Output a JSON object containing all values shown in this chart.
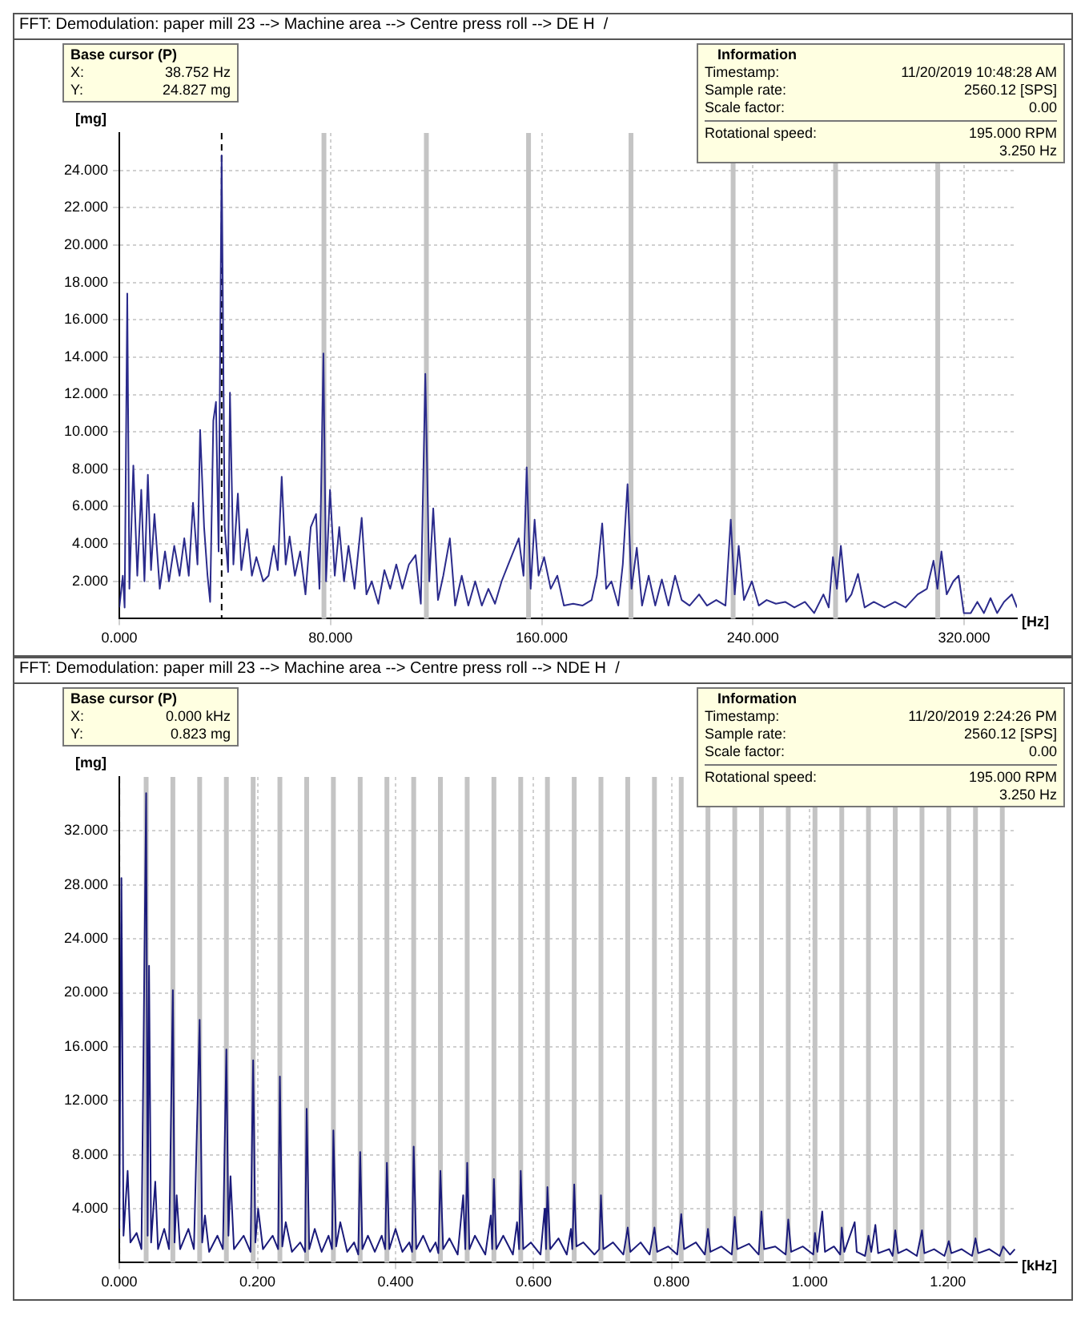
{
  "chart_data": [
    {
      "type": "line",
      "title": "FFT: Demodulation: paper mill 23 --> Machine area --> Centre press roll --> DE H  /",
      "xlabel": "[Hz]",
      "ylabel": "[mg]",
      "annotations": [
        "Base cursor (P)",
        "X:",
        "38.752 Hz",
        "Y:",
        "24.827 mg",
        "Information",
        "Timestamp:",
        "11/20/2019 10:48:28 AM",
        "Sample rate:",
        "2560.12 [SPS]",
        "Scale factor:",
        "0.00",
        "Rotational speed:",
        "195.000 RPM",
        "3.250 Hz"
      ],
      "color": "#2b2b8c",
      "marker": "none",
      "grid": true,
      "xlim": [
        0,
        340
      ],
      "ylim": [
        0,
        26
      ],
      "xticks": [
        {
          "value": 0,
          "label": "0.000"
        },
        {
          "value": 80,
          "label": "80.000"
        },
        {
          "value": 160,
          "label": "160.000"
        },
        {
          "value": 240,
          "label": "240.000"
        },
        {
          "value": 320,
          "label": "320.000"
        }
      ],
      "yticks": [
        {
          "value": 2,
          "label": "2.000"
        },
        {
          "value": 4,
          "label": "4.000"
        },
        {
          "value": 6,
          "label": "6.000"
        },
        {
          "value": 8,
          "label": "8.000"
        },
        {
          "value": 10,
          "label": "10.000"
        },
        {
          "value": 12,
          "label": "12.000"
        },
        {
          "value": 14,
          "label": "14.000"
        },
        {
          "value": 16,
          "label": "16.000"
        },
        {
          "value": 18,
          "label": "18.000"
        },
        {
          "value": 20,
          "label": "20.000"
        },
        {
          "value": 22,
          "label": "22.000"
        },
        {
          "value": 24,
          "label": "24.000"
        }
      ],
      "ref_lines": [
        {
          "axis": "x",
          "value": 38.752,
          "color": "#000000",
          "line_style": "dashed"
        },
        {
          "axis": "x",
          "value": 77.5,
          "color": "#c4c4c4"
        },
        {
          "axis": "x",
          "value": 116.3,
          "color": "#c4c4c4"
        },
        {
          "axis": "x",
          "value": 155,
          "color": "#c4c4c4"
        },
        {
          "axis": "x",
          "value": 193.8,
          "color": "#c4c4c4"
        },
        {
          "axis": "x",
          "value": 232.5,
          "color": "#c4c4c4"
        },
        {
          "axis": "x",
          "value": 271.3,
          "color": "#c4c4c4"
        },
        {
          "axis": "x",
          "value": 310,
          "color": "#c4c4c4"
        }
      ],
      "x": [
        0,
        1.3,
        2,
        3,
        3.8,
        5.3,
        6.8,
        8.3,
        9.5,
        10.8,
        12,
        13.3,
        15.3,
        17.3,
        18.8,
        20.8,
        22.8,
        24.6,
        26.3,
        27.9,
        29.6,
        30.6,
        32.1,
        33.4,
        34.4,
        35.6,
        36.6,
        37.6,
        38.752,
        39.9,
        41.2,
        41.9,
        43.2,
        44.9,
        46.2,
        48.4,
        50.2,
        51.9,
        54.5,
        56.5,
        58.5,
        60,
        61.5,
        63,
        64.5,
        66.5,
        68.5,
        70.5,
        72.5,
        74.5,
        75.8,
        77.3,
        78.3,
        79.8,
        81.6,
        83.3,
        85.1,
        86.8,
        89.1,
        91.8,
        93.6,
        95.6,
        98.1,
        100.4,
        102.6,
        104.9,
        107.2,
        109.7,
        112.2,
        114.2,
        115.9,
        117.4,
        118.9,
        120.7,
        122.7,
        125.2,
        127.2,
        129.7,
        132.2,
        134.8,
        137.3,
        139.8,
        142.3,
        144.8,
        147.3,
        149.3,
        151.3,
        153.1,
        154.3,
        155.8,
        157.3,
        158.8,
        160.9,
        163.4,
        165.9,
        168.4,
        171.9,
        175.4,
        178.9,
        180.9,
        182.9,
        184.4,
        186.4,
        189,
        190.7,
        192.5,
        194,
        196,
        198,
        200.5,
        203,
        205.5,
        208,
        210.5,
        213,
        216,
        219.6,
        222.6,
        226.1,
        229.6,
        231.6,
        233.1,
        234.6,
        236.6,
        239.6,
        242.2,
        245.2,
        248.7,
        252.2,
        255.7,
        259.7,
        263.2,
        266.7,
        268.7,
        270.3,
        271.8,
        273.3,
        275.3,
        277.3,
        279.8,
        282.3,
        285.8,
        289.8,
        293.8,
        297.8,
        302.4,
        305.9,
        308.4,
        309.9,
        311.4,
        313.4,
        315.9,
        317.9,
        319.9,
        322.5,
        325,
        327.5,
        330,
        332.5,
        335.1,
        338.1,
        340
      ],
      "values": [
        0.6,
        2.3,
        0.6,
        17.4,
        1.6,
        8.2,
        2.3,
        6.9,
        2,
        7.7,
        2.6,
        5.6,
        1.6,
        3.6,
        2,
        3.9,
        2.3,
        4.3,
        2.3,
        6.2,
        2.9,
        10.1,
        4.9,
        2.3,
        0.9,
        10.6,
        11.6,
        3.6,
        24.8,
        4.9,
        2.5,
        12.1,
        2.9,
        6.7,
        2.6,
        4.8,
        2.3,
        3.3,
        2,
        2.3,
        3.9,
        2.6,
        7.6,
        2.9,
        4.4,
        2.3,
        3.6,
        1.3,
        4.9,
        5.6,
        1.6,
        14.2,
        2,
        6.9,
        2.3,
        4.9,
        2,
        3.9,
        1.6,
        5.4,
        1.3,
        2,
        0.8,
        2.6,
        1.6,
        2.9,
        1.6,
        2.9,
        3.4,
        0.8,
        13.1,
        2,
        5.9,
        1,
        2.3,
        4.3,
        0.7,
        2.3,
        0.7,
        2,
        0.7,
        1.6,
        0.8,
        2,
        2.9,
        3.6,
        4.3,
        2.3,
        8.1,
        1.6,
        5.3,
        2.3,
        3.3,
        1.6,
        2.3,
        0.7,
        0.8,
        0.7,
        1,
        2.3,
        5.1,
        1.6,
        2,
        0.7,
        2.9,
        7.2,
        1.6,
        3.8,
        0.7,
        2.3,
        0.7,
        2.1,
        0.7,
        2.3,
        1,
        0.7,
        1.3,
        0.7,
        1,
        0.7,
        5.3,
        1.3,
        3.9,
        1,
        2,
        0.7,
        1,
        0.8,
        0.9,
        0.6,
        0.9,
        0.3,
        1.3,
        0.6,
        3.3,
        1.6,
        3.9,
        0.9,
        1.3,
        2.4,
        0.6,
        0.9,
        0.6,
        0.9,
        0.6,
        1.3,
        1.6,
        3.1,
        1.6,
        3.6,
        1.3,
        2,
        2.3,
        0.3,
        0.3,
        0.9,
        0.3,
        1.1,
        0.3,
        0.9,
        1.3,
        0.6
      ]
    },
    {
      "type": "line",
      "title": "FFT: Demodulation: paper mill 23 --> Machine area --> Centre press roll --> NDE H  /",
      "xlabel": "[kHz]",
      "ylabel": "[mg]",
      "annotations": [
        "Base cursor (P)",
        "X:",
        "0.000 kHz",
        "Y:",
        "0.823 mg",
        "Information",
        "Timestamp:",
        "11/20/2019 2:24:26 PM",
        "Sample rate:",
        "2560.12 [SPS]",
        "Scale factor:",
        "0.00",
        "Rotational speed:",
        "195.000 RPM",
        "3.250 Hz"
      ],
      "color": "#1a1a7a",
      "marker": "none",
      "grid": true,
      "xlim": [
        0,
        1.3
      ],
      "ylim": [
        0,
        36
      ],
      "xticks": [
        {
          "value": 0,
          "label": "0.000"
        },
        {
          "value": 0.2,
          "label": "0.200"
        },
        {
          "value": 0.4,
          "label": "0.400"
        },
        {
          "value": 0.6,
          "label": "0.600"
        },
        {
          "value": 0.8,
          "label": "0.800"
        },
        {
          "value": 1,
          "label": "1.000"
        },
        {
          "value": 1.2,
          "label": "1.200"
        }
      ],
      "yticks": [
        {
          "value": 4,
          "label": "4.000"
        },
        {
          "value": 8,
          "label": "8.000"
        },
        {
          "value": 12,
          "label": "12.000"
        },
        {
          "value": 16,
          "label": "16.000"
        },
        {
          "value": 20,
          "label": "20.000"
        },
        {
          "value": 24,
          "label": "24.000"
        },
        {
          "value": 28,
          "label": "28.000"
        },
        {
          "value": 32,
          "label": "32.000"
        }
      ],
      "ref_lines": [
        {
          "axis": "x",
          "value": 0,
          "color": "#000000",
          "line_style": "dashed"
        },
        {
          "axis": "x",
          "value": 0.0388,
          "color": "#c4c4c4"
        },
        {
          "axis": "x",
          "value": 0.0775,
          "color": "#c4c4c4"
        },
        {
          "axis": "x",
          "value": 0.1163,
          "color": "#c4c4c4"
        },
        {
          "axis": "x",
          "value": 0.155,
          "color": "#c4c4c4"
        },
        {
          "axis": "x",
          "value": 0.1938,
          "color": "#c4c4c4"
        },
        {
          "axis": "x",
          "value": 0.2325,
          "color": "#c4c4c4"
        },
        {
          "axis": "x",
          "value": 0.2713,
          "color": "#c4c4c4"
        },
        {
          "axis": "x",
          "value": 0.31,
          "color": "#c4c4c4"
        },
        {
          "axis": "x",
          "value": 0.3488,
          "color": "#c4c4c4"
        },
        {
          "axis": "x",
          "value": 0.3875,
          "color": "#c4c4c4"
        },
        {
          "axis": "x",
          "value": 0.4263,
          "color": "#c4c4c4"
        },
        {
          "axis": "x",
          "value": 0.465,
          "color": "#c4c4c4"
        },
        {
          "axis": "x",
          "value": 0.5038,
          "color": "#c4c4c4"
        },
        {
          "axis": "x",
          "value": 0.5425,
          "color": "#c4c4c4"
        },
        {
          "axis": "x",
          "value": 0.5813,
          "color": "#c4c4c4"
        },
        {
          "axis": "x",
          "value": 0.62,
          "color": "#c4c4c4"
        },
        {
          "axis": "x",
          "value": 0.6588,
          "color": "#c4c4c4"
        },
        {
          "axis": "x",
          "value": 0.6975,
          "color": "#c4c4c4"
        },
        {
          "axis": "x",
          "value": 0.7363,
          "color": "#c4c4c4"
        },
        {
          "axis": "x",
          "value": 0.775,
          "color": "#c4c4c4"
        },
        {
          "axis": "x",
          "value": 0.8138,
          "color": "#c4c4c4"
        },
        {
          "axis": "x",
          "value": 0.8525,
          "color": "#c4c4c4"
        },
        {
          "axis": "x",
          "value": 0.8913,
          "color": "#c4c4c4"
        },
        {
          "axis": "x",
          "value": 0.93,
          "color": "#c4c4c4"
        },
        {
          "axis": "x",
          "value": 0.9688,
          "color": "#c4c4c4"
        },
        {
          "axis": "x",
          "value": 1.0075,
          "color": "#c4c4c4"
        },
        {
          "axis": "x",
          "value": 1.0463,
          "color": "#c4c4c4"
        },
        {
          "axis": "x",
          "value": 1.085,
          "color": "#c4c4c4"
        },
        {
          "axis": "x",
          "value": 1.1238,
          "color": "#c4c4c4"
        },
        {
          "axis": "x",
          "value": 1.1625,
          "color": "#c4c4c4"
        },
        {
          "axis": "x",
          "value": 1.2013,
          "color": "#c4c4c4"
        },
        {
          "axis": "x",
          "value": 1.24,
          "color": "#c4c4c4"
        },
        {
          "axis": "x",
          "value": 1.2788,
          "color": "#c4c4c4"
        }
      ],
      "x": [
        0,
        0.003,
        0.006,
        0.012,
        0.016,
        0.025,
        0.032,
        0.0388,
        0.041,
        0.043,
        0.046,
        0.052,
        0.056,
        0.065,
        0.072,
        0.0775,
        0.08,
        0.083,
        0.088,
        0.1,
        0.108,
        0.1163,
        0.12,
        0.124,
        0.13,
        0.142,
        0.15,
        0.155,
        0.158,
        0.161,
        0.166,
        0.18,
        0.19,
        0.1938,
        0.197,
        0.201,
        0.208,
        0.222,
        0.23,
        0.2325,
        0.236,
        0.241,
        0.25,
        0.262,
        0.269,
        0.2713,
        0.275,
        0.283,
        0.293,
        0.303,
        0.308,
        0.31,
        0.314,
        0.32,
        0.33,
        0.34,
        0.346,
        0.3488,
        0.352,
        0.36,
        0.37,
        0.38,
        0.385,
        0.3875,
        0.391,
        0.4,
        0.41,
        0.42,
        0.424,
        0.4263,
        0.43,
        0.44,
        0.45,
        0.458,
        0.462,
        0.465,
        0.469,
        0.478,
        0.49,
        0.498,
        0.501,
        0.5038,
        0.507,
        0.515,
        0.53,
        0.538,
        0.54,
        0.5425,
        0.546,
        0.556,
        0.57,
        0.576,
        0.579,
        0.5813,
        0.585,
        0.596,
        0.61,
        0.616,
        0.618,
        0.62,
        0.624,
        0.636,
        0.648,
        0.654,
        0.656,
        0.6588,
        0.662,
        0.672,
        0.688,
        0.695,
        0.6975,
        0.701,
        0.715,
        0.73,
        0.7363,
        0.74,
        0.755,
        0.768,
        0.775,
        0.779,
        0.795,
        0.808,
        0.8138,
        0.818,
        0.835,
        0.848,
        0.8525,
        0.856,
        0.872,
        0.887,
        0.8913,
        0.895,
        0.912,
        0.926,
        0.93,
        0.934,
        0.95,
        0.965,
        0.9688,
        0.973,
        0.99,
        1.005,
        1.0075,
        1.011,
        1.018,
        1.022,
        1.035,
        1.044,
        1.0463,
        1.05,
        1.065,
        1.068,
        1.08,
        1.085,
        1.089,
        1.095,
        1.099,
        1.115,
        1.12,
        1.1238,
        1.128,
        1.14,
        1.155,
        1.1625,
        1.166,
        1.18,
        1.195,
        1.2013,
        1.205,
        1.22,
        1.235,
        1.24,
        1.244,
        1.26,
        1.275,
        1.28,
        1.29,
        1.297
      ],
      "values": [
        2.5,
        28.5,
        2,
        6.8,
        1.5,
        2.2,
        1,
        34.8,
        2,
        22,
        1.5,
        6,
        1,
        2.5,
        1,
        20.2,
        1.5,
        5,
        1,
        2.5,
        1,
        18,
        1.5,
        3.5,
        0.8,
        2,
        1,
        15.8,
        2,
        6.4,
        1,
        2,
        0.8,
        15,
        1.5,
        4,
        1,
        2,
        1,
        13.8,
        1.2,
        3,
        0.8,
        1.5,
        0.8,
        11.4,
        1,
        2.5,
        0.8,
        2,
        1,
        9.8,
        1.2,
        3,
        0.8,
        1.5,
        0.6,
        8.2,
        1,
        2,
        0.8,
        2,
        1,
        7.4,
        1,
        2.5,
        0.8,
        1.5,
        0.8,
        8.6,
        1,
        2,
        0.8,
        1.5,
        0.7,
        6.8,
        1,
        1.8,
        0.6,
        5,
        1,
        7.4,
        1,
        2,
        0.6,
        3.5,
        1,
        6.2,
        1,
        2,
        0.6,
        3,
        1,
        6.8,
        1,
        1.5,
        0.6,
        4,
        1,
        5.6,
        1,
        1.8,
        0.6,
        2.5,
        1,
        5.8,
        1.2,
        1.5,
        0.6,
        1,
        5,
        1,
        1.5,
        0.6,
        2.6,
        0.8,
        1.5,
        0.6,
        2.6,
        0.8,
        1.2,
        0.6,
        3.6,
        1,
        1.5,
        0.6,
        2.5,
        0.8,
        1.2,
        0.6,
        3.4,
        1,
        1.4,
        0.6,
        3.8,
        1,
        1.2,
        0.6,
        3.2,
        0.8,
        1.2,
        0.6,
        2.2,
        0.8,
        3.8,
        0.8,
        1.2,
        0.6,
        2.6,
        0.8,
        3,
        0.8,
        0.5,
        2,
        0.8,
        2.8,
        0.7,
        1,
        0.5,
        2.4,
        0.7,
        1,
        0.5,
        2.4,
        0.7,
        1,
        0.5,
        1.6,
        0.7,
        1,
        0.5,
        1.8,
        0.7,
        1,
        0.5,
        1.2,
        0.6,
        1
      ]
    }
  ]
}
